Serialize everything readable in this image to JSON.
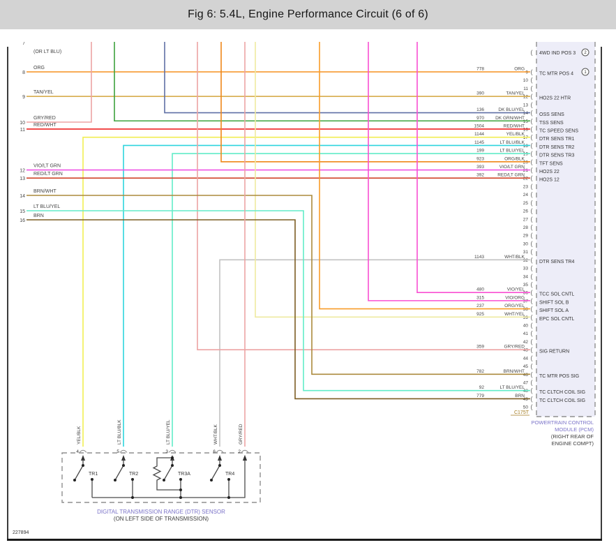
{
  "title": "Fig 6: 5.4L, Engine Performance Circuit (6 of 6)",
  "drawing_number": "227894",
  "pcm": {
    "connector_label": "C175T",
    "name": [
      "POWERTRAIN CONTROL",
      "MODULE (PCM)"
    ],
    "location": [
      "(RIGHT REAR OF",
      "ENGINE COMPT)"
    ],
    "unwired_row": {
      "label": "4WD IND POS 3",
      "note": "2"
    },
    "pins": [
      {
        "pin": 9,
        "label": "TC MTR POS 4",
        "note": "1",
        "circuit": "778",
        "color": "ORG"
      },
      {
        "pin": 10
      },
      {
        "pin": 11
      },
      {
        "pin": 12,
        "label": "HO2S 22 HTR",
        "circuit": "390",
        "color": "TAN/YEL"
      },
      {
        "pin": 13
      },
      {
        "pin": 14,
        "label": "OSS SENS",
        "circuit": "136",
        "color": "DK BLU/YEL"
      },
      {
        "pin": 15,
        "label": "TSS SENS",
        "circuit": "970",
        "color": "DK GRN/WHT"
      },
      {
        "pin": 16,
        "label": "TC SPEED SENS",
        "circuit": "1504",
        "color": "RED/WHT"
      },
      {
        "pin": 17,
        "label": "DTR SENS TR1",
        "circuit": "1144",
        "color": "YEL/BLK"
      },
      {
        "pin": 18,
        "label": "DTR SENS TR2",
        "circuit": "1145",
        "color": "LT BLU/BLK"
      },
      {
        "pin": 19,
        "label": "DTR SENS TR3",
        "circuit": "199",
        "color": "LT BLU/YEL"
      },
      {
        "pin": 20,
        "label": "TFT SENS",
        "circuit": "923",
        "color": "ORG/BLK"
      },
      {
        "pin": 21,
        "label": "HO2S 22",
        "circuit": "393",
        "color": "VIO/LT GRN"
      },
      {
        "pin": 22,
        "label": "HO2S 12",
        "circuit": "392",
        "color": "RED/LT GRN"
      },
      {
        "pin": 23
      },
      {
        "pin": 24
      },
      {
        "pin": 25
      },
      {
        "pin": 26
      },
      {
        "pin": 27
      },
      {
        "pin": 28
      },
      {
        "pin": 29
      },
      {
        "pin": 30
      },
      {
        "pin": 31
      },
      {
        "pin": 32,
        "label": "DTR SENS TR4",
        "circuit": "1143",
        "color": "WHT/BLK"
      },
      {
        "pin": 33
      },
      {
        "pin": 34
      },
      {
        "pin": 35
      },
      {
        "pin": 36,
        "label": "TCC SOL CNTL",
        "circuit": "480",
        "color": "VIO/YEL"
      },
      {
        "pin": 37,
        "label": "SHIFT SOL B",
        "circuit": "315",
        "color": "VIO/ORG"
      },
      {
        "pin": 38,
        "label": "SHIFT SOL A",
        "circuit": "237",
        "color": "ORG/YEL"
      },
      {
        "pin": 39,
        "label": "EPC SOL CNTL",
        "circuit": "925",
        "color": "WHT/YEL"
      },
      {
        "pin": 40
      },
      {
        "pin": 41
      },
      {
        "pin": 42
      },
      {
        "pin": 43,
        "label": "SIG RETURN",
        "circuit": "359",
        "color": "GRY/RED"
      },
      {
        "pin": 44
      },
      {
        "pin": 45
      },
      {
        "pin": 46,
        "label": "TC MTR POS SIG",
        "circuit": "782",
        "color": "BRN/WHT"
      },
      {
        "pin": 47
      },
      {
        "pin": 48,
        "label": "TC CLTCH COIL SIG",
        "circuit": "92",
        "color": "LT BLU/YEL"
      },
      {
        "pin": 49,
        "label": "TC CLTCH COIL SIG",
        "circuit": "779",
        "color": "BRN"
      },
      {
        "pin": 50
      }
    ]
  },
  "left_entries": [
    {
      "row": "7",
      "label": "(OR LT BLU)"
    },
    {
      "row": "8",
      "label": "ORG"
    },
    {
      "row": "9",
      "label": "TAN/YEL"
    },
    {
      "row": "10",
      "label": "GRY/RED"
    },
    {
      "row": "11",
      "label": "RED/WHT"
    },
    {
      "row": "12",
      "label": "VIO/LT GRN"
    },
    {
      "row": "13",
      "label": "RED/LT GRN"
    },
    {
      "row": "14",
      "label": "BRN/WHT"
    },
    {
      "row": "15",
      "label": "LT BLU/YEL"
    },
    {
      "row": "16",
      "label": "BRN"
    }
  ],
  "dtr": {
    "caption": [
      "DIGITAL TRANSMISSION RANGE (DTR) SENSOR",
      "(ON LEFT SIDE OF TRANSMISSION)"
    ],
    "pins": [
      {
        "num": "4",
        "color": "YEL/BLK"
      },
      {
        "num": "5",
        "color": "LT BLU/BLK"
      },
      {
        "num": "3",
        "color": "LT BLU/YEL"
      },
      {
        "num": "6",
        "color": "WHT/BLK"
      },
      {
        "num": "2",
        "color": "GRY/RED"
      }
    ],
    "switches": [
      "TR1",
      "TR2",
      "TR3A",
      "TR4"
    ]
  },
  "colors": {
    "ORG": "#f5911e",
    "TAN/YEL": "#d3a53c",
    "GRY/RED": "#eda3a3",
    "RED/WHT": "#ee2222",
    "DK BLU/YEL": "#5f6fa5",
    "DK GRN/WHT": "#3da23d",
    "YEL/BLK": "#f1ee52",
    "LT BLU/BLK": "#2ed5de",
    "LT BLU/YEL": "#62ecc8",
    "ORG/BLK": "#ef8718",
    "VIO/LT GRN": "#ef52e4",
    "RED/LT GRN": "#d0452a",
    "BRN/WHT": "#ab8a3c",
    "BRN": "#7c5d22",
    "WHT/BLK": "#c1c1c1",
    "WHT/YEL": "#eeeaa0",
    "VIO/YEL": "#f94fd2",
    "VIO/ORG": "#f94fd2",
    "ORG/YEL": "#f89c28",
    "accent_caption_blue": "#7a72c8",
    "connector_label_brown": "#a2791c"
  }
}
